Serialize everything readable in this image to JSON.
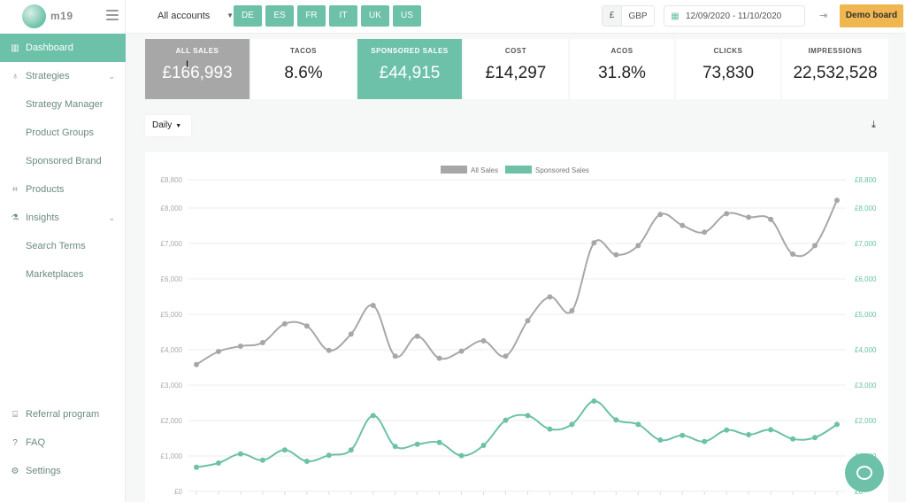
{
  "app": {
    "logo_text": "m19"
  },
  "sidebar": {
    "items": [
      {
        "label": "Dashboard"
      },
      {
        "label": "Strategies"
      },
      {
        "label": "Strategy Manager"
      },
      {
        "label": "Product Groups"
      },
      {
        "label": "Sponsored Brand"
      },
      {
        "label": "Products"
      },
      {
        "label": "Insights"
      },
      {
        "label": "Search Terms"
      },
      {
        "label": "Marketplaces"
      }
    ],
    "bottom": [
      {
        "label": "Referral program"
      },
      {
        "label": "FAQ"
      },
      {
        "label": "Settings"
      }
    ]
  },
  "topbar": {
    "accounts_label": "All accounts",
    "markets": [
      "DE",
      "ES",
      "FR",
      "IT",
      "UK",
      "US"
    ],
    "currency_symbol": "£",
    "currency_code": "GBP",
    "date_range": "12/09/2020 - 11/10/2020",
    "demo_label": "Demo board"
  },
  "kpis": [
    {
      "label": "ALL SALES",
      "value": "£166,993"
    },
    {
      "label": "TACOS",
      "value": "8.6%"
    },
    {
      "label": "SPONSORED SALES",
      "value": "£44,915"
    },
    {
      "label": "COST",
      "value": "£14,297"
    },
    {
      "label": "ACOS",
      "value": "31.8%"
    },
    {
      "label": "CLICKS",
      "value": "73,830"
    },
    {
      "label": "IMPRESSIONS",
      "value": "22,532,528"
    }
  ],
  "controls": {
    "period_label": "Daily"
  },
  "colors": {
    "accent": "#6cc1a8",
    "grey": "#a7a7a7",
    "demo": "#f0b64f"
  },
  "chart_data": {
    "type": "line",
    "legend": [
      "All Sales",
      "Sponsored Sales"
    ],
    "ylim": [
      0,
      8800
    ],
    "y_ticks": [
      "£0",
      "£1,000",
      "£2,000",
      "£3,000",
      "£4,000",
      "£5,000",
      "£6,000",
      "£7,000",
      "£8,000",
      "£8,800"
    ],
    "series": [
      {
        "name": "All Sales",
        "color": "#a7a7a7",
        "values": [
          3580,
          3950,
          4100,
          4200,
          4730,
          4670,
          3980,
          4440,
          5250,
          3820,
          4380,
          3760,
          3960,
          4250,
          3820,
          4820,
          5490,
          5100,
          7020,
          6680,
          6940,
          7820,
          7510,
          7320,
          7840,
          7740,
          7680,
          6700,
          6940,
          8220
        ]
      },
      {
        "name": "Sponsored Sales",
        "color": "#6cc1a8",
        "values": [
          680,
          800,
          1060,
          880,
          1170,
          850,
          1020,
          1170,
          2140,
          1270,
          1330,
          1380,
          1010,
          1300,
          2010,
          2140,
          1760,
          1890,
          2550,
          2020,
          1890,
          1450,
          1580,
          1410,
          1730,
          1600,
          1740,
          1480,
          1520,
          1890
        ]
      }
    ]
  }
}
